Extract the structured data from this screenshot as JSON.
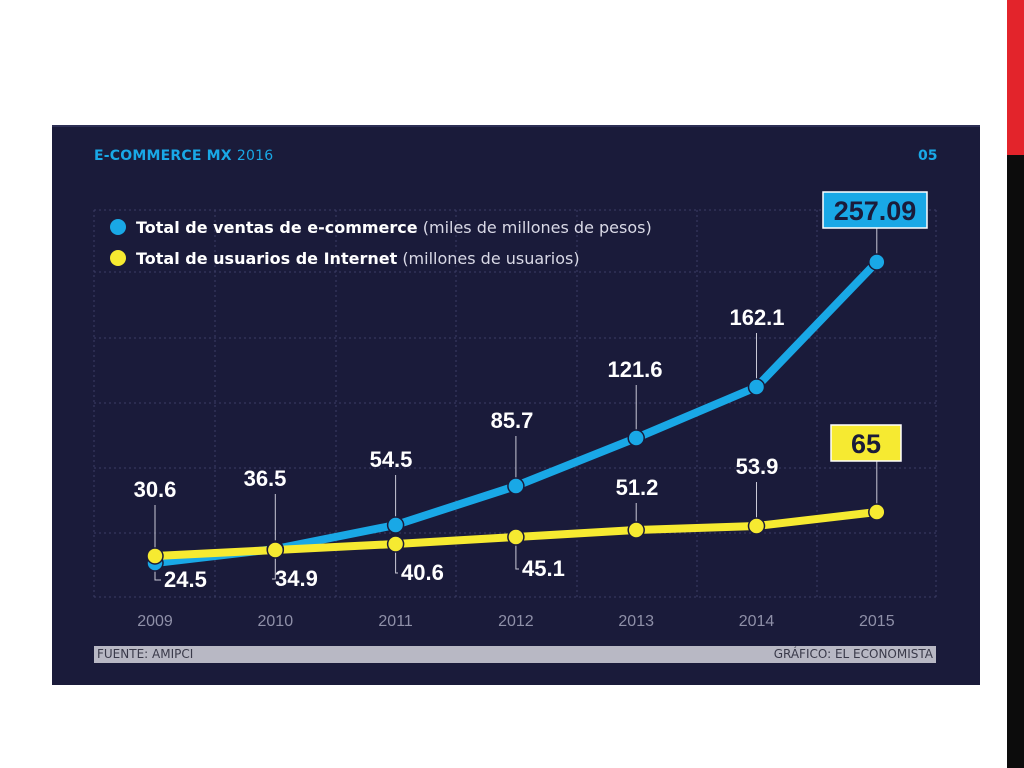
{
  "title": "E-COMMERCE MX",
  "title_year": "2016",
  "page_number": "05",
  "legend": [
    {
      "name": "Total de ventas de e-commerce",
      "unit": "(miles de millones de pesos)",
      "color": "#19a8e6"
    },
    {
      "name": "Total de usuarios de Internet",
      "unit": "(millones de usuarios)",
      "color": "#f6ea31"
    }
  ],
  "footer": {
    "source": "FUENTE: AMIPCI",
    "credit": "GRÁFICO: EL ECONOMISTA"
  },
  "chart_data": {
    "type": "line",
    "x": [
      "2009",
      "2010",
      "2011",
      "2012",
      "2013",
      "2014",
      "2015"
    ],
    "series": [
      {
        "name": "Total de ventas de e-commerce",
        "unit": "(miles de millones de pesos)",
        "color": "#19a8e6",
        "values": [
          24.5,
          34.9,
          54.5,
          85.7,
          121.6,
          162.1,
          257.09
        ],
        "labels": [
          "24.5",
          "34.9",
          "54.5",
          "85.7",
          "121.6",
          "162.1",
          "257.09"
        ]
      },
      {
        "name": "Total de usuarios de Internet",
        "unit": "(millones de usuarios)",
        "color": "#f6ea31",
        "values": [
          30.6,
          36.5,
          40.6,
          45.1,
          51.2,
          53.9,
          65
        ],
        "labels": [
          "30.6",
          "36.5",
          "40.6",
          "45.1",
          "51.2",
          "53.9",
          "65"
        ]
      }
    ],
    "grid": true,
    "legend_position": "top-left",
    "highlighted_last_values": true
  }
}
